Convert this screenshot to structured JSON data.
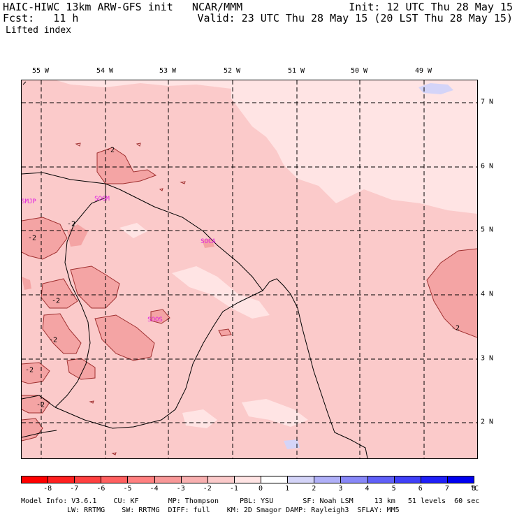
{
  "header": {
    "line1_left": "HAIC-HIWC 13km ARW-GFS init   NCAR/MMM",
    "line1_right": "Init: 12 UTC Thu 28 May 15",
    "line2_left": "Fcst:   11 h",
    "line2_right": "Valid: 23 UTC Thu 28 May 15 (20 LST Thu 28 May 15)",
    "field": "Lifted index"
  },
  "longitudes": [
    "55 W",
    "54 W",
    "53 W",
    "52 W",
    "51 W",
    "50 W",
    "49 W"
  ],
  "latitudes": [
    "7 N",
    "6 N",
    "5 N",
    "4 N",
    "3 N",
    "2 N"
  ],
  "stations": [
    "SMJP",
    "SOGM",
    "SOCA",
    "SOOS"
  ],
  "contour_label": "-2",
  "colorbar": {
    "labels": [
      "-8",
      "-7",
      "-6",
      "-5",
      "-4",
      "-3",
      "-2",
      "-1",
      "0",
      "1",
      "2",
      "3",
      "4",
      "5",
      "6",
      "7",
      "8"
    ],
    "unit": "°C",
    "colors": [
      "#ff0000",
      "#ff2020",
      "#ff4040",
      "#ff6060",
      "#ff8080",
      "#f89898",
      "#f8b0b0",
      "#fbcaca",
      "#ffe4e4",
      "#ffffff",
      "#d4d4f8",
      "#b0b0f8",
      "#8888f8",
      "#6060f8",
      "#4040f8",
      "#2020f8",
      "#0000f0"
    ]
  },
  "colors": {
    "base_fill": "#fbcaca",
    "light_fill": "#ffe4e4",
    "dark_fill": "#f4a4a4",
    "blue_fill": "#d4d4f8",
    "station": "#e020e0"
  },
  "footer": {
    "line1": "Model Info: V3.6.1    CU: KF       MP: Thompson     PBL: YSU       SF: Noah LSM     13 km   51 levels  60 sec",
    "line2": "LW: RRTMG    SW: RRTMG  DIFF: full    KM: 2D Smagor DAMP: Rayleigh3  SFLAY: MM5"
  }
}
